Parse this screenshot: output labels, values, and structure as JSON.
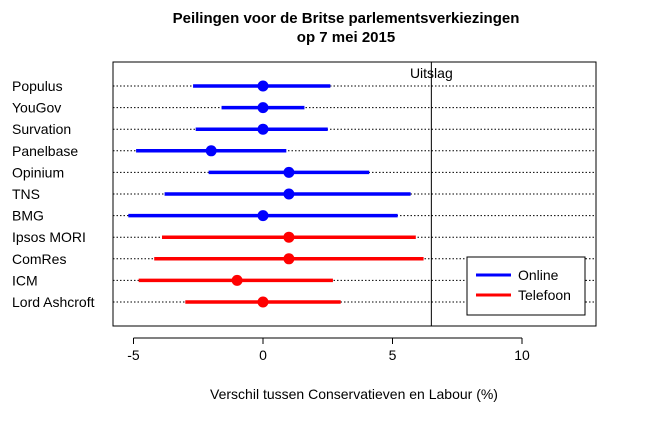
{
  "chart_data": {
    "type": "scatter",
    "title": "Peilingen voor de Britse parlementsverkiezingen",
    "subtitle": "op 7 mei 2015",
    "xlabel": "Verschil tussen Conservatieven en Labour (%)",
    "ylabel": "",
    "xlim": [
      -5.5,
      12.8
    ],
    "xticks": [
      "-5",
      "0",
      "5",
      "10"
    ],
    "xtick_values": [
      -5,
      0,
      5,
      10
    ],
    "grid": "dotted horizontal",
    "reference_line": {
      "x": 6.5,
      "label": "Uitslag"
    },
    "legend_position": "bottom-right",
    "series": [
      {
        "name": "Online",
        "color": "#0000ff"
      },
      {
        "name": "Telefoon",
        "color": "#ff0000"
      }
    ],
    "polls": [
      {
        "label": "Populus",
        "mode": "Online",
        "estimate": 0,
        "low": -2.7,
        "high": 2.6
      },
      {
        "label": "YouGov",
        "mode": "Online",
        "estimate": 0,
        "low": -1.6,
        "high": 1.6
      },
      {
        "label": "Survation",
        "mode": "Online",
        "estimate": 0,
        "low": -2.6,
        "high": 2.5
      },
      {
        "label": "Panelbase",
        "mode": "Online",
        "estimate": -2,
        "low": -4.9,
        "high": 0.9
      },
      {
        "label": "Opinium",
        "mode": "Online",
        "estimate": 1,
        "low": -2.1,
        "high": 4.1
      },
      {
        "label": "TNS",
        "mode": "Online",
        "estimate": 1,
        "low": -3.8,
        "high": 5.7
      },
      {
        "label": "BMG",
        "mode": "Online",
        "estimate": 0,
        "low": -5.2,
        "high": 5.2
      },
      {
        "label": "Ipsos MORI",
        "mode": "Telefoon",
        "estimate": 1,
        "low": -3.9,
        "high": 5.9
      },
      {
        "label": "ComRes",
        "mode": "Telefoon",
        "estimate": 1,
        "low": -4.2,
        "high": 6.2
      },
      {
        "label": "ICM",
        "mode": "Telefoon",
        "estimate": -1,
        "low": -4.8,
        "high": 2.7
      },
      {
        "label": "Lord Ashcroft",
        "mode": "Telefoon",
        "estimate": 0,
        "low": -3.0,
        "high": 3.0
      }
    ]
  }
}
